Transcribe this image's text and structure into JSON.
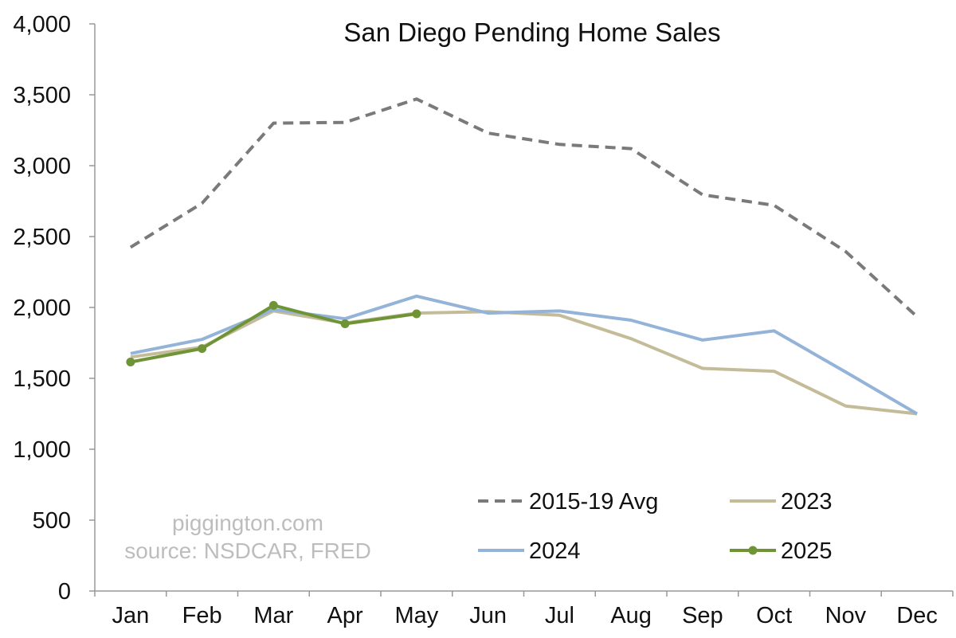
{
  "chart_data": {
    "type": "line",
    "title": "San Diego Pending Home Sales",
    "xlabel": "",
    "ylabel": "",
    "categories": [
      "Jan",
      "Feb",
      "Mar",
      "Apr",
      "May",
      "Jun",
      "Jul",
      "Aug",
      "Sep",
      "Oct",
      "Nov",
      "Dec"
    ],
    "ylim": [
      0,
      4000
    ],
    "yticks": [
      0,
      500,
      1000,
      1500,
      2000,
      2500,
      3000,
      3500,
      4000
    ],
    "ytick_labels": [
      "0",
      "500",
      "1,000",
      "1,500",
      "2,000",
      "2,500",
      "3,000",
      "3,500",
      "4,000"
    ],
    "grid": false,
    "legend_position": "bottom-right",
    "series": [
      {
        "name": "2015-19 Avg",
        "color": "#7a7a7a",
        "style": "dashed",
        "markers": false,
        "values": [
          2425,
          2735,
          3300,
          3305,
          3470,
          3230,
          3150,
          3120,
          2795,
          2720,
          2395,
          1935
        ]
      },
      {
        "name": "2023",
        "color": "#c4bc99",
        "style": "solid",
        "markers": false,
        "values": [
          1650,
          1720,
          1975,
          1890,
          1960,
          1970,
          1945,
          1780,
          1570,
          1550,
          1305,
          1250
        ]
      },
      {
        "name": "2024",
        "color": "#93b3d8",
        "style": "solid",
        "markers": false,
        "values": [
          1675,
          1775,
          1985,
          1920,
          2080,
          1960,
          1975,
          1910,
          1770,
          1835,
          1545,
          1250
        ]
      },
      {
        "name": "2025",
        "color": "#6f9436",
        "style": "solid",
        "markers": true,
        "values": [
          1615,
          1710,
          2015,
          1885,
          1955,
          null,
          null,
          null,
          null,
          null,
          null,
          null
        ]
      }
    ],
    "annotations": [
      "piggington.com",
      "source: NSDCAR, FRED"
    ]
  }
}
